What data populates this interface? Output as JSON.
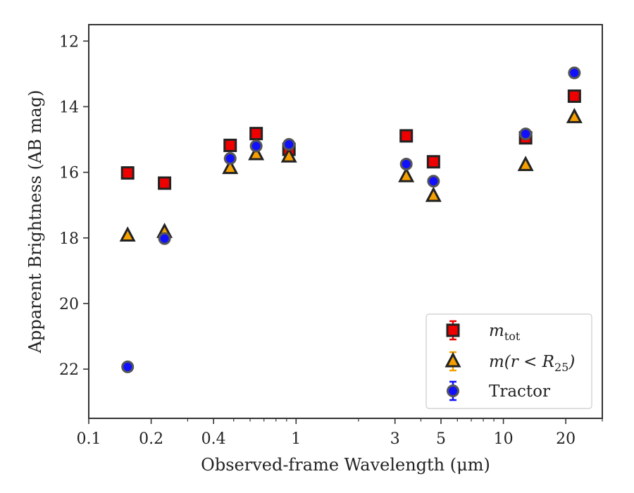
{
  "chart_data": {
    "type": "scatter",
    "xlabel": "Observed-frame Wavelength (μm)",
    "ylabel": "Apparent Brightness (AB mag)",
    "xscale": "log",
    "xlim": [
      0.1,
      30
    ],
    "ylim": [
      23.5,
      11.5
    ],
    "y_inverted": true,
    "x_ticks": [
      {
        "value": 0.1,
        "label": "0.1"
      },
      {
        "value": 0.2,
        "label": "0.2"
      },
      {
        "value": 0.4,
        "label": "0.4"
      },
      {
        "value": 1,
        "label": "1"
      },
      {
        "value": 3,
        "label": "3"
      },
      {
        "value": 5,
        "label": "5"
      },
      {
        "value": 10,
        "label": "10"
      },
      {
        "value": 20,
        "label": "20"
      }
    ],
    "y_ticks": [
      {
        "value": 12,
        "label": "12"
      },
      {
        "value": 14,
        "label": "14"
      },
      {
        "value": 16,
        "label": "16"
      },
      {
        "value": 18,
        "label": "18"
      },
      {
        "value": 20,
        "label": "20"
      },
      {
        "value": 22,
        "label": "22"
      }
    ],
    "legend_position": "bottom-right",
    "grid": false,
    "series": [
      {
        "name": "m_tot",
        "legend_label_main": "m",
        "legend_label_sub": "tot",
        "marker": "square",
        "color": "#ee0000",
        "x": [
          0.154,
          0.232,
          0.481,
          0.642,
          0.924,
          3.4,
          4.6,
          12.8,
          22.0
        ],
        "y": [
          16.02,
          16.33,
          15.18,
          14.82,
          15.3,
          14.89,
          15.68,
          14.95,
          13.68
        ]
      },
      {
        "name": "m(r < R25)",
        "legend_label_main": "m(r < R",
        "legend_label_sub": "25",
        "legend_label_end": ")",
        "marker": "triangle",
        "color": "#f5a000",
        "x": [
          0.154,
          0.232,
          0.481,
          0.642,
          0.924,
          3.4,
          4.6,
          12.8,
          22.0
        ],
        "y": [
          17.93,
          17.82,
          15.87,
          15.45,
          15.52,
          16.12,
          16.72,
          15.78,
          14.32
        ]
      },
      {
        "name": "Tractor",
        "legend_label_main": "Tractor",
        "marker": "circle",
        "color": "#1010ff",
        "x": [
          0.154,
          0.232,
          0.481,
          0.642,
          0.924,
          3.4,
          4.6,
          12.8,
          22.0
        ],
        "y": [
          21.93,
          18.02,
          15.58,
          15.2,
          15.15,
          15.75,
          16.27,
          14.83,
          12.97
        ]
      }
    ]
  }
}
